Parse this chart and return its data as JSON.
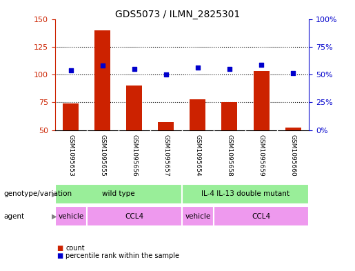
{
  "title": "GDS5073 / ILMN_2825301",
  "samples": [
    "GSM1095653",
    "GSM1095655",
    "GSM1095656",
    "GSM1095657",
    "GSM1095654",
    "GSM1095658",
    "GSM1095659",
    "GSM1095660"
  ],
  "count_values": [
    74,
    140,
    90,
    57,
    78,
    75,
    103,
    52
  ],
  "percentile_values": [
    54,
    58,
    55,
    50,
    56,
    55,
    59,
    51
  ],
  "count_baseline": 50,
  "count_ylim": [
    50,
    150
  ],
  "count_yticks": [
    50,
    75,
    100,
    125,
    150
  ],
  "percentile_ylim": [
    0,
    100
  ],
  "percentile_yticks": [
    0,
    25,
    50,
    75,
    100
  ],
  "bar_color": "#cc2200",
  "dot_color": "#0000cc",
  "grid_color": "#000000",
  "genotype_groups": [
    {
      "label": "wild type",
      "start": 0,
      "end": 4,
      "color": "#99ee99"
    },
    {
      "label": "IL-4 IL-13 double mutant",
      "start": 4,
      "end": 8,
      "color": "#99ee99"
    }
  ],
  "agent_groups": [
    {
      "label": "vehicle",
      "start": 0,
      "end": 1,
      "color": "#ee99ee"
    },
    {
      "label": "CCL4",
      "start": 1,
      "end": 4,
      "color": "#ee99ee"
    },
    {
      "label": "vehicle",
      "start": 4,
      "end": 5,
      "color": "#ee99ee"
    },
    {
      "label": "CCL4",
      "start": 5,
      "end": 8,
      "color": "#ee99ee"
    }
  ],
  "bg_color": "#cccccc",
  "plot_bg": "#ffffff",
  "left_label_color": "#cc2200",
  "right_label_color": "#0000cc"
}
